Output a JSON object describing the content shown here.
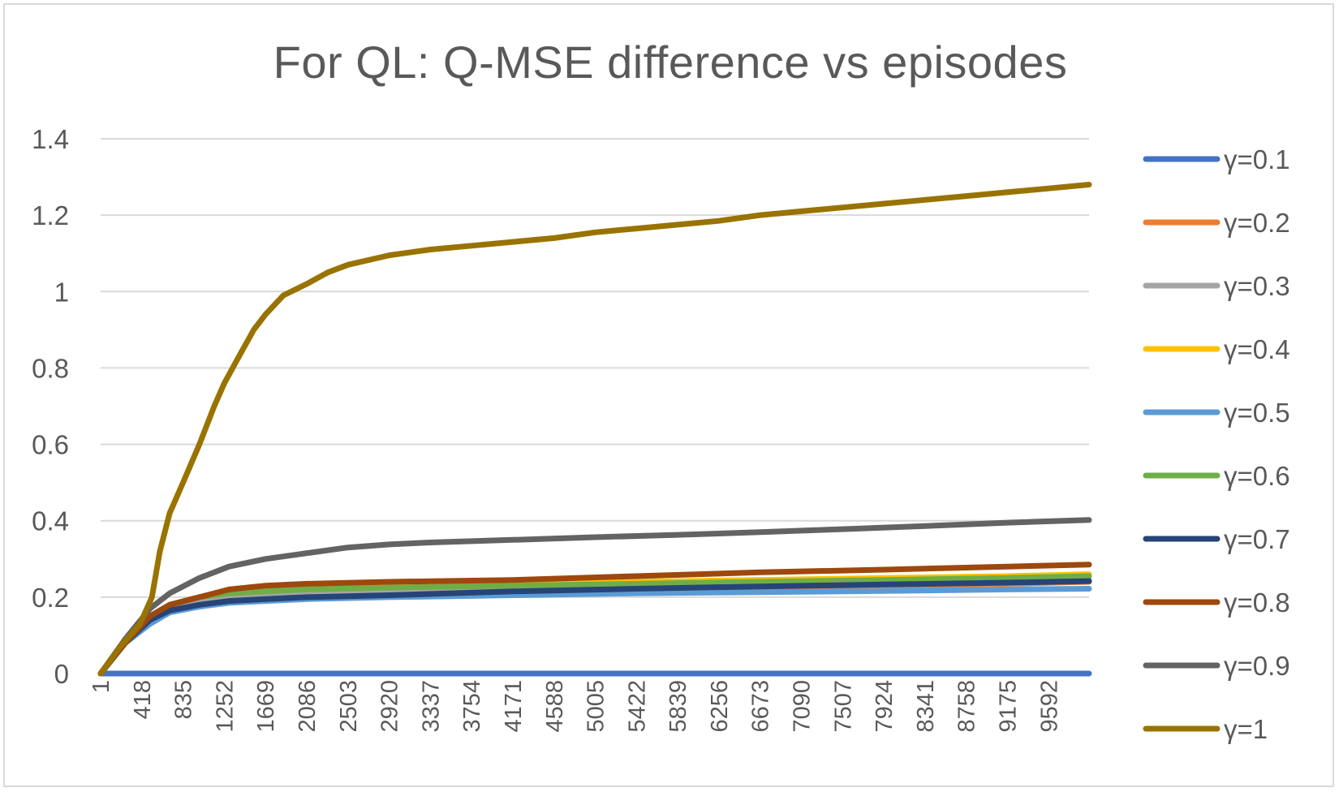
{
  "chart_data": {
    "type": "line",
    "title": "For QL: Q-MSE difference vs episodes",
    "xlabel": "",
    "ylabel": "",
    "x_tick_labels": [
      "1",
      "418",
      "835",
      "1252",
      "1669",
      "2086",
      "2503",
      "2920",
      "3337",
      "3754",
      "4171",
      "4588",
      "5005",
      "5422",
      "5839",
      "6256",
      "6673",
      "7090",
      "7507",
      "7924",
      "8341",
      "8758",
      "9175",
      "9592"
    ],
    "xlim": [
      1,
      10000
    ],
    "ylim": [
      0,
      1.4
    ],
    "y_tick_labels": [
      "0",
      "0.2",
      "0.4",
      "0.6",
      "0.8",
      "1",
      "1.2",
      "1.4"
    ],
    "y_ticks": [
      0,
      0.2,
      0.4,
      0.6,
      0.8,
      1,
      1.2,
      1.4
    ],
    "grid": true,
    "legend_position": "right",
    "series": [
      {
        "name": "γ=0.1",
        "color": "#4472c4",
        "x": [
          1,
          10000
        ],
        "y": [
          0,
          0
        ]
      },
      {
        "name": "γ=0.2",
        "color": "#ed7d31",
        "x": [
          1,
          250,
          500,
          700,
          1000,
          1300,
          1669,
          2086,
          2920,
          4171,
          5422,
          6673,
          7924,
          9175,
          10000
        ],
        "y": [
          0,
          0.08,
          0.14,
          0.16,
          0.18,
          0.19,
          0.2,
          0.205,
          0.21,
          0.215,
          0.22,
          0.225,
          0.23,
          0.235,
          0.24
        ]
      },
      {
        "name": "γ=0.3",
        "color": "#a5a5a5",
        "x": [
          1,
          250,
          500,
          700,
          1000,
          1300,
          1669,
          2086,
          2920,
          4171,
          5422,
          6673,
          7924,
          9175,
          10000
        ],
        "y": [
          0,
          0.08,
          0.14,
          0.17,
          0.19,
          0.2,
          0.205,
          0.21,
          0.215,
          0.22,
          0.225,
          0.23,
          0.235,
          0.24,
          0.245
        ]
      },
      {
        "name": "γ=0.4",
        "color": "#ffc000",
        "x": [
          1,
          250,
          500,
          700,
          1000,
          1300,
          1669,
          2086,
          2920,
          4171,
          5422,
          6673,
          7924,
          9175,
          10000
        ],
        "y": [
          0,
          0.08,
          0.15,
          0.18,
          0.2,
          0.215,
          0.22,
          0.225,
          0.23,
          0.235,
          0.24,
          0.245,
          0.25,
          0.255,
          0.26
        ]
      },
      {
        "name": "γ=0.5",
        "color": "#5b9bd5",
        "x": [
          1,
          250,
          500,
          700,
          1000,
          1300,
          1669,
          2086,
          2920,
          4171,
          5422,
          6673,
          7924,
          9175,
          10000
        ],
        "y": [
          0,
          0.08,
          0.13,
          0.16,
          0.175,
          0.185,
          0.19,
          0.195,
          0.2,
          0.205,
          0.21,
          0.213,
          0.216,
          0.22,
          0.222
        ]
      },
      {
        "name": "γ=0.6",
        "color": "#70ad47",
        "x": [
          1,
          250,
          500,
          700,
          1000,
          1300,
          1669,
          2086,
          2920,
          4171,
          5422,
          6673,
          7924,
          9175,
          10000
        ],
        "y": [
          0,
          0.08,
          0.15,
          0.18,
          0.2,
          0.21,
          0.215,
          0.22,
          0.225,
          0.23,
          0.235,
          0.24,
          0.245,
          0.25,
          0.255
        ]
      },
      {
        "name": "γ=0.7",
        "color": "#264478",
        "x": [
          1,
          250,
          500,
          700,
          1000,
          1300,
          1669,
          2086,
          2920,
          4171,
          5422,
          6673,
          7924,
          9175,
          10000
        ],
        "y": [
          0,
          0.08,
          0.14,
          0.165,
          0.18,
          0.19,
          0.195,
          0.2,
          0.205,
          0.215,
          0.222,
          0.228,
          0.233,
          0.238,
          0.242
        ]
      },
      {
        "name": "γ=0.8",
        "color": "#9e480e",
        "x": [
          1,
          250,
          500,
          700,
          1000,
          1300,
          1669,
          2086,
          2920,
          4171,
          5422,
          6673,
          7924,
          9175,
          10000
        ],
        "y": [
          0,
          0.08,
          0.15,
          0.18,
          0.2,
          0.22,
          0.23,
          0.235,
          0.24,
          0.245,
          0.255,
          0.265,
          0.272,
          0.28,
          0.285
        ]
      },
      {
        "name": "γ=0.9",
        "color": "#636363",
        "x": [
          1,
          250,
          500,
          700,
          1000,
          1300,
          1669,
          2086,
          2500,
          2920,
          3337,
          4171,
          5005,
          5839,
          6673,
          7507,
          8341,
          9175,
          10000
        ],
        "y": [
          0,
          0.09,
          0.17,
          0.21,
          0.25,
          0.28,
          0.3,
          0.315,
          0.33,
          0.338,
          0.343,
          0.35,
          0.357,
          0.363,
          0.37,
          0.378,
          0.386,
          0.395,
          0.402
        ]
      },
      {
        "name": "γ=1",
        "color": "#997300",
        "x": [
          1,
          200,
          400,
          520,
          600,
          700,
          835,
          1000,
          1150,
          1252,
          1400,
          1550,
          1669,
          1850,
          2086,
          2300,
          2503,
          2920,
          3337,
          3754,
          4171,
          4588,
          5005,
          5422,
          5839,
          6256,
          6673,
          7090,
          7507,
          7924,
          8341,
          8758,
          9175,
          9592,
          10000
        ],
        "y": [
          0,
          0.07,
          0.13,
          0.2,
          0.32,
          0.42,
          0.5,
          0.6,
          0.7,
          0.76,
          0.83,
          0.9,
          0.94,
          0.99,
          1.02,
          1.05,
          1.07,
          1.095,
          1.11,
          1.12,
          1.13,
          1.14,
          1.155,
          1.165,
          1.175,
          1.185,
          1.2,
          1.21,
          1.22,
          1.23,
          1.24,
          1.25,
          1.26,
          1.27,
          1.28
        ]
      }
    ]
  }
}
